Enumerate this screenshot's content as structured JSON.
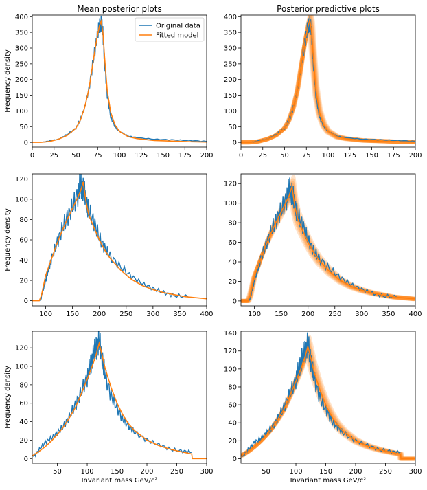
{
  "colors": {
    "original": "#1f77b4",
    "fitted": "#ff7f0e"
  },
  "column_titles": [
    "Mean posterior plots",
    "Posterior predictive plots"
  ],
  "xlabel": "Invariant mass GeV/c²",
  "ylabel": "Frequency density",
  "legend": {
    "location": "top-right",
    "entries": [
      "Original data",
      "Fitted model"
    ]
  },
  "chart_data": [
    {
      "type": "line",
      "row": 1,
      "col": 1,
      "title": "Mean posterior plots",
      "xlim": [
        0,
        200
      ],
      "ylim": [
        -15,
        405
      ],
      "xticks": [
        0,
        25,
        50,
        75,
        100,
        125,
        150,
        175,
        200
      ],
      "yticks": [
        0,
        50,
        100,
        150,
        200,
        250,
        300,
        350,
        400
      ],
      "ylabel": "Frequency density",
      "series": [
        {
          "name": "Original data",
          "x": [
            12,
            20,
            30,
            40,
            50,
            55,
            60,
            65,
            70,
            74,
            77,
            79,
            81,
            83,
            86,
            90,
            95,
            100,
            110,
            120,
            140,
            160,
            180,
            200
          ],
          "y": [
            0,
            5,
            10,
            25,
            45,
            70,
            110,
            170,
            260,
            330,
            370,
            380,
            350,
            250,
            150,
            80,
            50,
            35,
            20,
            15,
            10,
            8,
            6,
            3
          ]
        },
        {
          "name": "Fitted model",
          "x": [
            0,
            10,
            20,
            30,
            40,
            50,
            55,
            60,
            65,
            70,
            74,
            77,
            79,
            81,
            83,
            86,
            90,
            95,
            100,
            110,
            120,
            140,
            160,
            180,
            200
          ],
          "y": [
            0,
            0,
            3,
            10,
            22,
            45,
            70,
            110,
            170,
            260,
            330,
            370,
            385,
            350,
            270,
            165,
            95,
            55,
            35,
            18,
            12,
            6,
            4,
            2,
            1
          ]
        }
      ],
      "show_legend": true
    },
    {
      "type": "line",
      "row": 1,
      "col": 2,
      "title": "Posterior predictive plots",
      "xlim": [
        0,
        200
      ],
      "ylim": [
        -15,
        405
      ],
      "xticks": [
        0,
        25,
        50,
        75,
        100,
        125,
        150,
        175,
        200
      ],
      "yticks": [
        0,
        50,
        100,
        150,
        200,
        250,
        300,
        350,
        400
      ],
      "series": [
        {
          "name": "Original data",
          "x": [
            12,
            20,
            30,
            40,
            50,
            55,
            60,
            65,
            70,
            74,
            77,
            79,
            81,
            83,
            86,
            90,
            95,
            100,
            110,
            120,
            140,
            160,
            180,
            200
          ],
          "y": [
            0,
            5,
            10,
            25,
            45,
            70,
            110,
            170,
            260,
            330,
            370,
            380,
            350,
            250,
            150,
            80,
            50,
            35,
            20,
            15,
            10,
            8,
            6,
            3
          ]
        },
        {
          "name": "Fitted model",
          "x": [
            0,
            10,
            20,
            30,
            40,
            50,
            55,
            60,
            65,
            70,
            74,
            77,
            79,
            81,
            83,
            86,
            90,
            95,
            100,
            110,
            120,
            140,
            160,
            180,
            200
          ],
          "y": [
            0,
            0,
            3,
            10,
            22,
            45,
            70,
            110,
            170,
            260,
            330,
            370,
            390,
            350,
            270,
            165,
            95,
            55,
            35,
            18,
            12,
            6,
            4,
            2,
            1
          ]
        }
      ],
      "band": true
    },
    {
      "type": "line",
      "row": 2,
      "col": 1,
      "xlim": [
        75,
        400
      ],
      "ylim": [
        -5,
        125
      ],
      "xticks": [
        100,
        150,
        200,
        250,
        300,
        350,
        400
      ],
      "yticks": [
        0,
        20,
        40,
        60,
        80,
        100,
        120
      ],
      "ylabel": "Frequency density",
      "series": [
        {
          "name": "Original data",
          "x": [
            90,
            95,
            100,
            105,
            110,
            120,
            130,
            140,
            150,
            160,
            165,
            170,
            175,
            180,
            190,
            200,
            210,
            220,
            240,
            260,
            280,
            300,
            320,
            340,
            365
          ],
          "y": [
            0,
            10,
            20,
            30,
            40,
            55,
            70,
            82,
            92,
            105,
            115,
            110,
            100,
            88,
            78,
            62,
            52,
            44,
            33,
            24,
            17,
            12,
            8,
            5,
            4
          ]
        },
        {
          "name": "Fitted model",
          "x": [
            75,
            88,
            92,
            100,
            110,
            120,
            130,
            140,
            150,
            160,
            165,
            170,
            175,
            180,
            190,
            200,
            210,
            220,
            240,
            260,
            280,
            300,
            320,
            340,
            360,
            380,
            400
          ],
          "y": [
            0,
            0,
            5,
            25,
            40,
            55,
            68,
            80,
            91,
            102,
            108,
            117,
            98,
            85,
            72,
            60,
            50,
            42,
            30,
            21,
            15,
            11,
            8,
            6,
            4,
            3,
            2
          ]
        }
      ]
    },
    {
      "type": "line",
      "row": 2,
      "col": 2,
      "xlim": [
        75,
        400
      ],
      "ylim": [
        -5,
        130
      ],
      "xticks": [
        100,
        150,
        200,
        250,
        300,
        350,
        400
      ],
      "yticks": [
        0,
        20,
        40,
        60,
        80,
        100,
        120
      ],
      "series": [
        {
          "name": "Original data",
          "x": [
            90,
            95,
            100,
            105,
            110,
            120,
            130,
            140,
            150,
            160,
            165,
            170,
            175,
            180,
            190,
            200,
            210,
            220,
            240,
            260,
            280,
            300,
            320,
            340,
            365
          ],
          "y": [
            0,
            10,
            20,
            30,
            40,
            55,
            70,
            82,
            92,
            105,
            115,
            110,
            100,
            88,
            78,
            62,
            52,
            44,
            33,
            24,
            17,
            12,
            8,
            5,
            4
          ]
        },
        {
          "name": "Fitted model",
          "x": [
            75,
            88,
            92,
            100,
            110,
            120,
            130,
            140,
            150,
            160,
            165,
            170,
            175,
            180,
            190,
            200,
            210,
            220,
            240,
            260,
            280,
            300,
            320,
            340,
            360,
            380,
            400
          ],
          "y": [
            0,
            0,
            5,
            25,
            40,
            55,
            68,
            80,
            91,
            102,
            108,
            117,
            98,
            85,
            72,
            60,
            50,
            42,
            30,
            21,
            15,
            11,
            8,
            6,
            4,
            3,
            2
          ]
        }
      ],
      "band": true
    },
    {
      "type": "line",
      "row": 3,
      "col": 1,
      "xlim": [
        8,
        300
      ],
      "ylim": [
        -5,
        138
      ],
      "xticks": [
        50,
        100,
        150,
        200,
        250,
        300
      ],
      "yticks": [
        0,
        20,
        40,
        60,
        80,
        100,
        120
      ],
      "xlabel": "Invariant mass GeV/c²",
      "ylabel": "Frequency density",
      "series": [
        {
          "name": "Original data",
          "x": [
            10,
            20,
            30,
            40,
            50,
            60,
            70,
            80,
            90,
            100,
            105,
            110,
            115,
            120,
            125,
            130,
            140,
            150,
            160,
            170,
            180,
            200,
            220,
            240,
            260,
            275
          ],
          "y": [
            2,
            10,
            18,
            22,
            28,
            35,
            45,
            58,
            72,
            88,
            100,
            112,
            120,
            128,
            110,
            90,
            68,
            55,
            42,
            35,
            28,
            20,
            15,
            10,
            8,
            7
          ]
        },
        {
          "name": "Fitted model",
          "x": [
            8,
            20,
            30,
            40,
            50,
            60,
            70,
            80,
            90,
            100,
            110,
            115,
            120,
            125,
            130,
            140,
            150,
            160,
            170,
            180,
            200,
            220,
            240,
            260,
            275,
            276,
            300
          ],
          "y": [
            3,
            8,
            13,
            19,
            26,
            34,
            44,
            55,
            70,
            86,
            103,
            113,
            125,
            112,
            98,
            77,
            60,
            47,
            37,
            30,
            20,
            14,
            10,
            7,
            5,
            0,
            0
          ]
        }
      ]
    },
    {
      "type": "line",
      "row": 3,
      "col": 2,
      "xlim": [
        8,
        300
      ],
      "ylim": [
        -5,
        142
      ],
      "xticks": [
        50,
        100,
        150,
        200,
        250,
        300
      ],
      "yticks": [
        0,
        20,
        40,
        60,
        80,
        100,
        120,
        140
      ],
      "xlabel": "Invariant mass GeV/c²",
      "series": [
        {
          "name": "Original data",
          "x": [
            10,
            20,
            30,
            40,
            50,
            60,
            70,
            80,
            90,
            100,
            105,
            110,
            115,
            120,
            125,
            130,
            140,
            150,
            160,
            170,
            180,
            200,
            220,
            240,
            260,
            275
          ],
          "y": [
            2,
            10,
            18,
            22,
            28,
            35,
            45,
            58,
            72,
            88,
            100,
            112,
            120,
            128,
            110,
            90,
            68,
            55,
            42,
            35,
            28,
            20,
            15,
            10,
            8,
            7
          ]
        },
        {
          "name": "Fitted model",
          "x": [
            8,
            20,
            30,
            40,
            50,
            60,
            70,
            80,
            90,
            100,
            110,
            115,
            120,
            125,
            130,
            140,
            150,
            160,
            170,
            180,
            200,
            220,
            240,
            260,
            275,
            276,
            300
          ],
          "y": [
            3,
            8,
            13,
            19,
            26,
            34,
            44,
            55,
            70,
            86,
            103,
            113,
            125,
            112,
            98,
            77,
            60,
            47,
            37,
            30,
            20,
            14,
            10,
            7,
            5,
            0,
            0
          ]
        }
      ],
      "band": true
    }
  ]
}
